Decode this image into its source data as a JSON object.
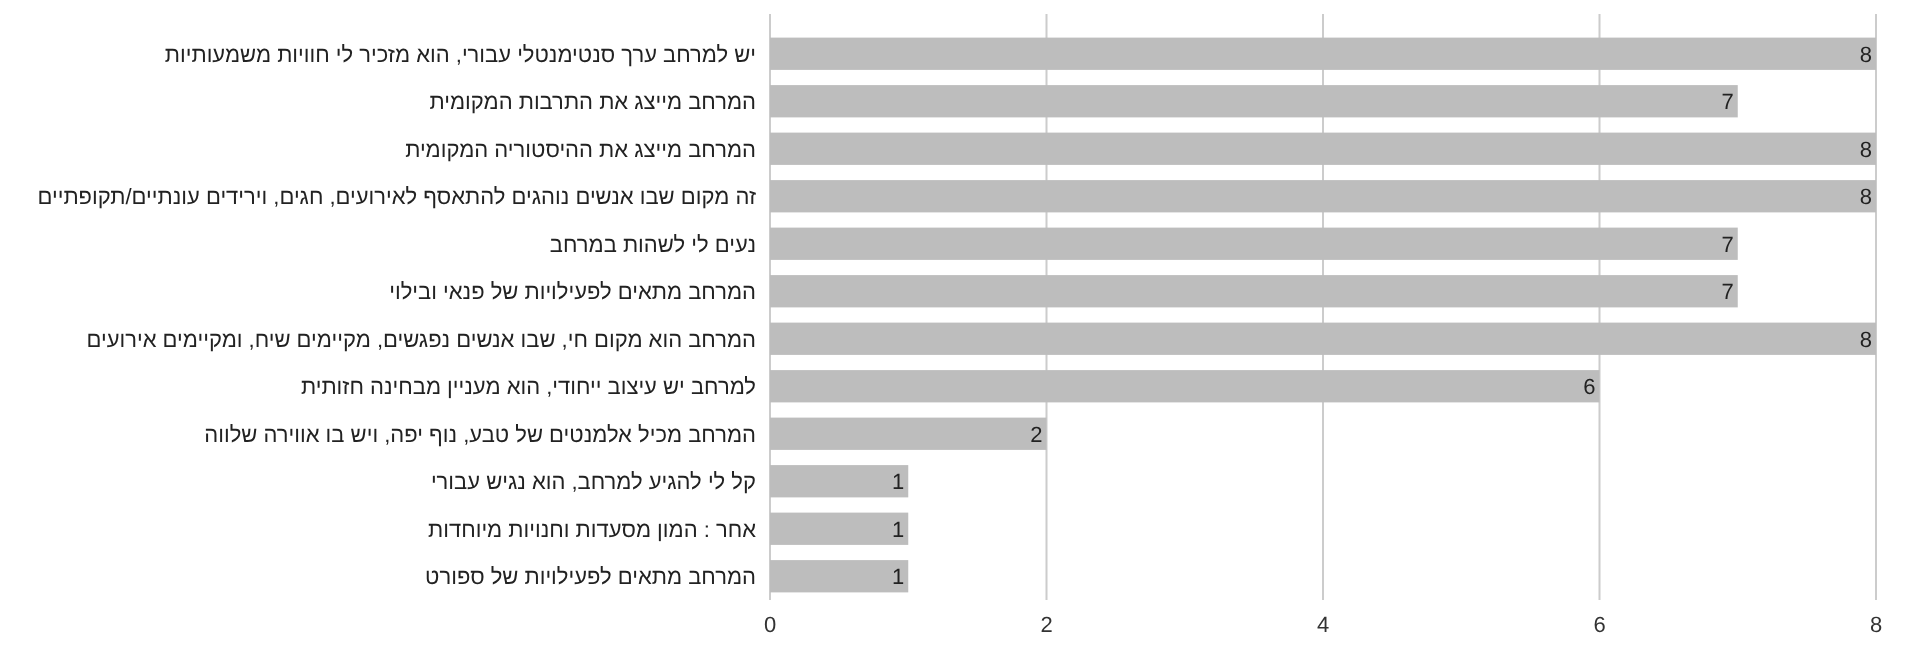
{
  "chart_data": {
    "type": "bar",
    "orientation": "horizontal",
    "categories": [
      "יש למרחב ערך סנטימנטלי עבורי, הוא מזכיר לי חוויות משמעותיות",
      "המרחב מייצג את התרבות המקומית",
      "המרחב מייצג את ההיסטוריה המקומית",
      "זה מקום שבו אנשים נוהגים להתאסף לאירועים, חגים, וירידים עונתיים/תקופתיים",
      "נעים לי לשהות במרחב",
      "המרחב מתאים לפעילויות של פנאי ובילוי",
      "המרחב הוא מקום חי, שבו אנשים נפגשים, מקיימים שיח, ומקיימים אירועים",
      "למרחב יש עיצוב ייחודי, הוא מעניין מבחינה חזותית",
      "המרחב מכיל אלמנטים של טבע, נוף יפה, ויש בו אווירה שלווה",
      "קל לי להגיע למרחב, הוא נגיש עבורי",
      "אחר : המון מסעדות וחנויות מיוחדות",
      "המרחב מתאים לפעילויות של ספורט"
    ],
    "values": [
      8,
      7,
      8,
      8,
      7,
      7,
      8,
      6,
      2,
      1,
      1,
      1
    ],
    "color": "#bdbdbd",
    "xlim": [
      0,
      8
    ],
    "xticks": [
      0,
      2,
      4,
      6,
      8
    ],
    "grid": "x",
    "data_labels": true
  }
}
